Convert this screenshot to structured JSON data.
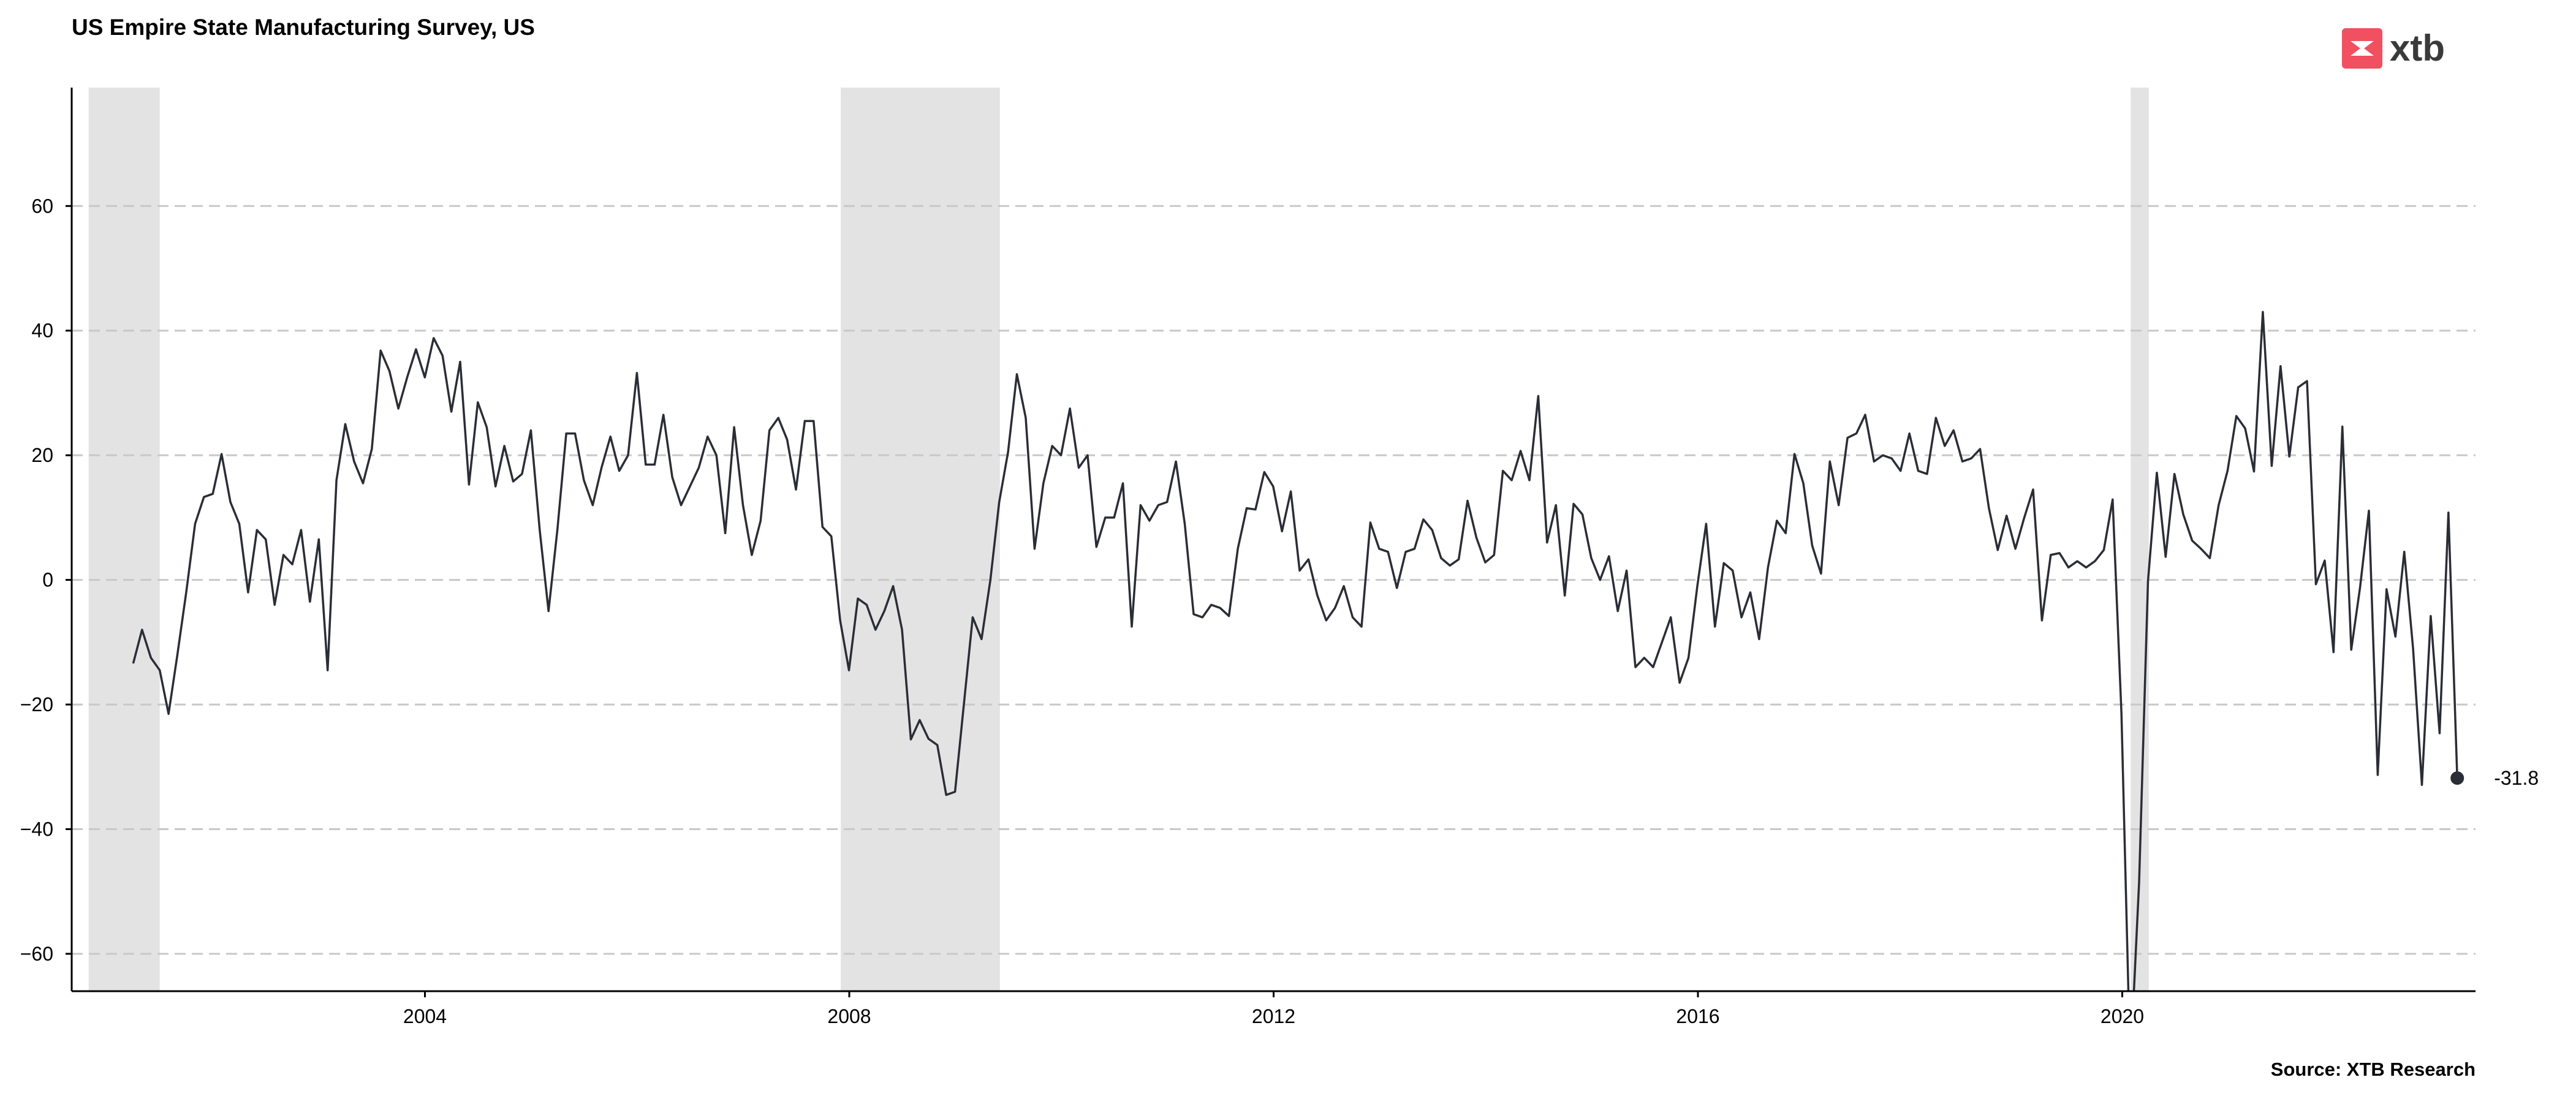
{
  "title": "US Empire State Manufacturing Survey, US",
  "source": "Source: XTB Research",
  "logo": {
    "text": "xtb",
    "icon": "xtb-logo-icon",
    "brand_color": "#f0505f"
  },
  "colors": {
    "line": "#2b2d36",
    "grid": "#c8c8c8",
    "recession": "#e3e3e3",
    "axis": "#000000"
  },
  "chart_data": {
    "type": "line",
    "title": "US Empire State Manufacturing Survey, US",
    "xlabel": "",
    "ylabel": "",
    "xlim": [
      2000.67,
      2023.33
    ],
    "ylim": [
      -66,
      79
    ],
    "x_ticks": [
      2004,
      2008,
      2012,
      2016,
      2020
    ],
    "y_ticks": [
      60,
      40,
      20,
      0,
      -20,
      -40,
      -60
    ],
    "grid": "horizontal dashed",
    "recession_bands": [
      [
        2000.83,
        2001.5
      ],
      [
        2007.92,
        2009.42
      ],
      [
        2020.08,
        2020.25
      ]
    ],
    "end_label": "-31.8",
    "series": [
      {
        "start_year": 2001.25,
        "step_years": 0.0833,
        "values": [
          -13.4,
          -8,
          -12.5,
          -14.5,
          -21.5,
          -12,
          -2,
          9,
          13.3,
          13.8,
          20.2,
          12.5,
          9,
          -2,
          8,
          6.5,
          -4,
          4,
          2.5,
          8,
          -3.5,
          6.5,
          -14.5,
          16,
          25,
          19,
          15.5,
          21,
          36.8,
          33.5,
          27.5,
          32.5,
          37,
          32.5,
          38.8,
          36,
          27,
          35,
          15.3,
          28.5,
          24.5,
          15,
          21.5,
          15.8,
          17,
          24,
          8,
          -5,
          8,
          23.5,
          23.5,
          16,
          12,
          18,
          23,
          17.5,
          20,
          33.2,
          18.5,
          18.5,
          26.5,
          16.5,
          12,
          15,
          18,
          23,
          20,
          7.5,
          24.5,
          12,
          4,
          9.5,
          24,
          26,
          22.5,
          14.5,
          25.5,
          25.5,
          8.5,
          7,
          -6.5,
          -14.5,
          -3,
          -4,
          -8,
          -5,
          -1,
          -8,
          -25.6,
          -22.5,
          -25.5,
          -26.5,
          -34.5,
          -34,
          -20,
          -6,
          -9.5,
          0,
          12.5,
          20.5,
          33,
          26,
          5,
          15.5,
          21.5,
          20,
          27.5,
          18,
          20,
          5.3,
          10,
          10,
          15.5,
          -7.5,
          12,
          9.5,
          12,
          12.5,
          19,
          9,
          -5.5,
          -6,
          -4,
          -4.5,
          -5.8,
          5,
          11.5,
          11.3,
          17.3,
          15,
          7.8,
          14.2,
          1.5,
          3.3,
          -2.5,
          -6.5,
          -4.5,
          -1,
          -6,
          -7.5,
          9.2,
          5,
          4.5,
          -1.3,
          4.5,
          5,
          9.7,
          8,
          3.5,
          2.3,
          3.3,
          12.7,
          6.8,
          2.8,
          4,
          17.5,
          16,
          20.7,
          16,
          29.5,
          6,
          12,
          -2.5,
          12.2,
          10.5,
          3.5,
          0,
          3.8,
          -5,
          1.5,
          -14,
          -12.5,
          -14,
          -10,
          -6,
          -16.5,
          -12.5,
          -1,
          9,
          -7.5,
          2.7,
          1.5,
          -6,
          -2,
          -9.5,
          2,
          9.5,
          7.5,
          20.2,
          15.5,
          5.5,
          1,
          19,
          12,
          22.8,
          23.5,
          26.5,
          19,
          20,
          19.5,
          17.5,
          23.5,
          17.5,
          17,
          26,
          21.5,
          24,
          19,
          19.5,
          21,
          11.5,
          4.8,
          10.3,
          5,
          10,
          14.5,
          -6.5,
          4,
          4.3,
          2,
          3,
          2,
          3,
          4.8,
          12.9,
          -21.5,
          -78.2,
          -48.5,
          -0.2,
          17.2,
          3.7,
          17,
          10.5,
          6.3,
          5,
          3.5,
          12,
          17.5,
          26.3,
          24.3,
          17.4,
          43,
          18.3,
          34.3,
          19.8,
          30.9,
          31.9,
          -0.7,
          3.1,
          -11.6,
          24.6,
          -11.2,
          -1.2,
          11.1,
          -31.3,
          -1.5,
          -9.1,
          4.5,
          -11,
          -32.9,
          -5.8,
          -24.6,
          10.8,
          -31.8
        ]
      }
    ]
  }
}
